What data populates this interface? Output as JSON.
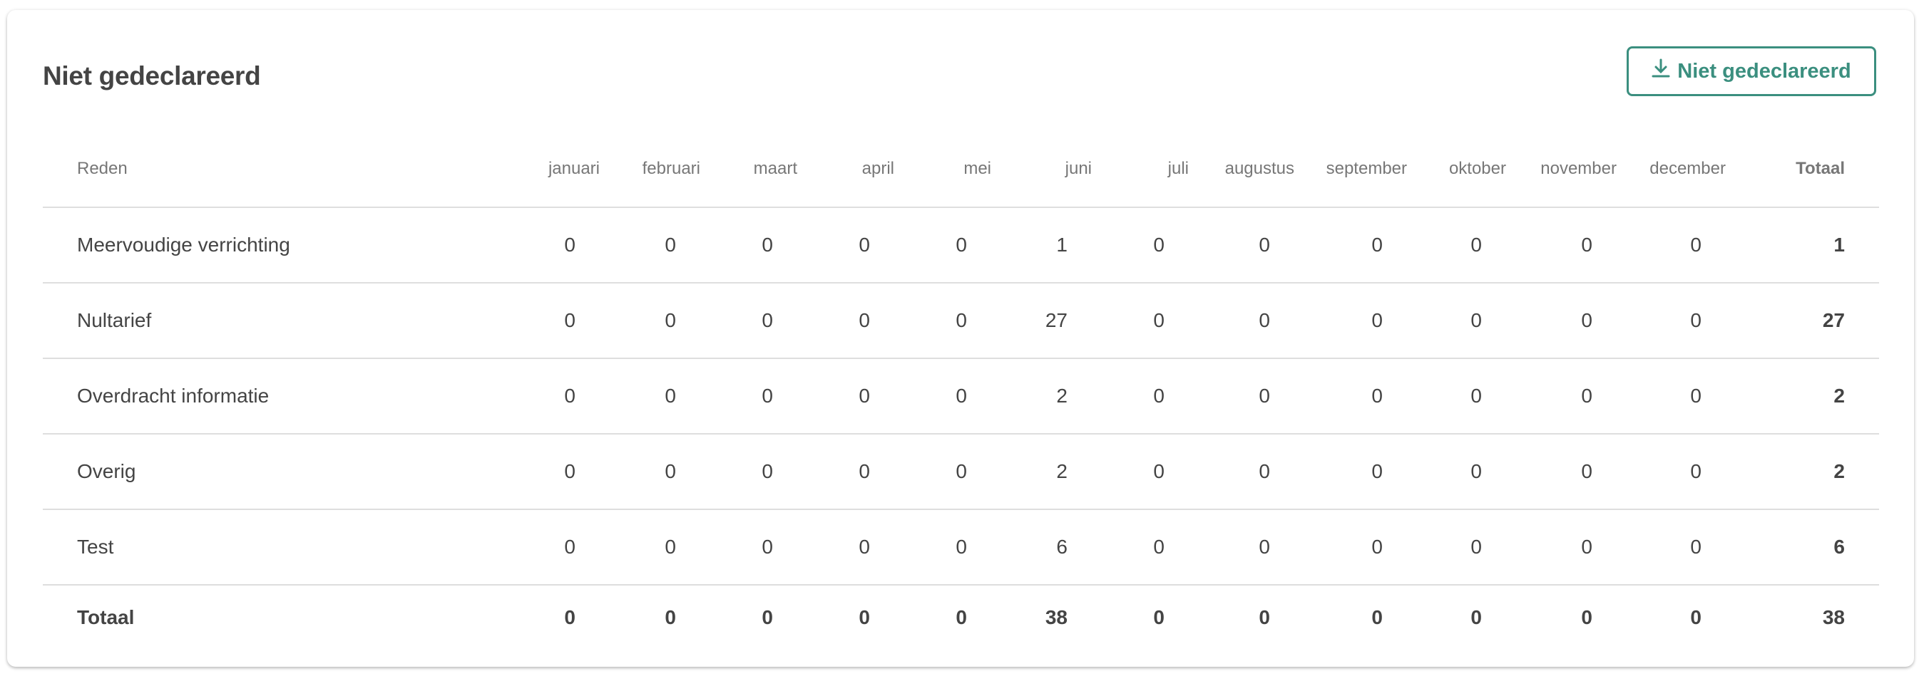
{
  "title": "Niet gedeclareerd",
  "download_button": {
    "label": "Niet gedeclareerd",
    "icon": "download-icon"
  },
  "colors": {
    "accent": "#3b8f7f",
    "text": "#444444",
    "header_text": "#777777",
    "divider": "#dedede"
  },
  "table": {
    "headers": [
      "Reden",
      "januari",
      "februari",
      "maart",
      "april",
      "mei",
      "juni",
      "juli",
      "augustus",
      "september",
      "oktober",
      "november",
      "december",
      "Totaal"
    ],
    "rows": [
      {
        "reason": "Meervoudige verrichting",
        "values": [
          "0",
          "0",
          "0",
          "0",
          "0",
          "1",
          "0",
          "0",
          "0",
          "0",
          "0",
          "0"
        ],
        "total": "1"
      },
      {
        "reason": "Nultarief",
        "values": [
          "0",
          "0",
          "0",
          "0",
          "0",
          "27",
          "0",
          "0",
          "0",
          "0",
          "0",
          "0"
        ],
        "total": "27"
      },
      {
        "reason": "Overdracht informatie",
        "values": [
          "0",
          "0",
          "0",
          "0",
          "0",
          "2",
          "0",
          "0",
          "0",
          "0",
          "0",
          "0"
        ],
        "total": "2"
      },
      {
        "reason": "Overig",
        "values": [
          "0",
          "0",
          "0",
          "0",
          "0",
          "2",
          "0",
          "0",
          "0",
          "0",
          "0",
          "0"
        ],
        "total": "2"
      },
      {
        "reason": "Test",
        "values": [
          "0",
          "0",
          "0",
          "0",
          "0",
          "6",
          "0",
          "0",
          "0",
          "0",
          "0",
          "0"
        ],
        "total": "6"
      }
    ],
    "footer": {
      "label": "Totaal",
      "values": [
        "0",
        "0",
        "0",
        "0",
        "0",
        "38",
        "0",
        "0",
        "0",
        "0",
        "0",
        "0"
      ],
      "total": "38"
    }
  }
}
